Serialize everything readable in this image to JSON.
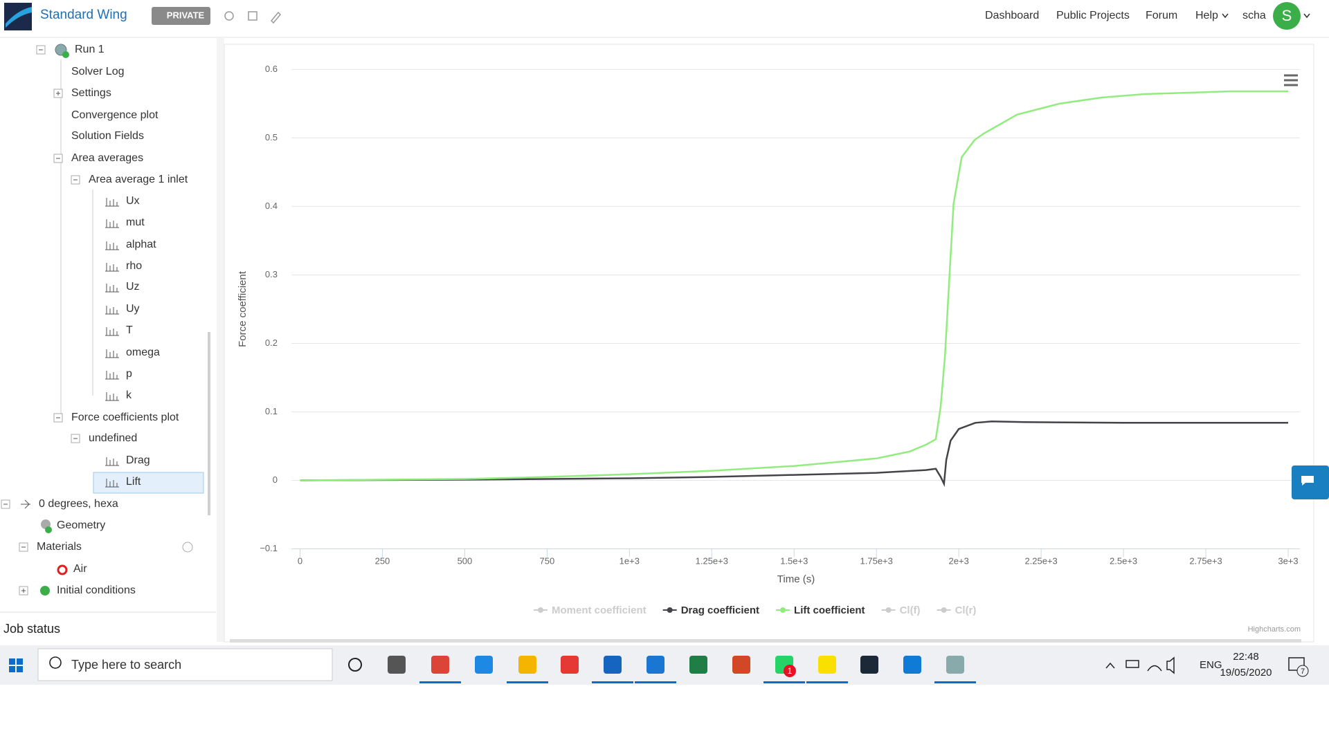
{
  "header": {
    "title": "Standard Wing",
    "badge": "PRIVATE",
    "nav": [
      "Dashboard",
      "Public Projects",
      "Forum",
      "Help"
    ],
    "user": "scha",
    "avatar": "S"
  },
  "sidebar": {
    "tree": [
      "Run 1",
      "Solver Log",
      "Settings",
      "Convergence plot",
      "Solution Fields",
      "Area averages",
      "Area average 1 inlet",
      "Ux",
      "mut",
      "alphat",
      "rho",
      "Uz",
      "Uy",
      "T",
      "omega",
      "p",
      "k",
      "Force coefficients plot",
      "undefined",
      "Drag",
      "Lift",
      "0 degrees, hexa",
      "Geometry",
      "Materials",
      "Air",
      "Initial conditions"
    ],
    "job_status": "Job status"
  },
  "chart_data": {
    "type": "line",
    "xlabel": "Time (s)",
    "ylabel": "Force coefficient",
    "credit": "Highcharts.com",
    "xlim": [
      0,
      3000
    ],
    "ylim": [
      -0.1,
      0.6
    ],
    "grid": true,
    "xticks": [
      0,
      250,
      500,
      750,
      {
        "value": 1000,
        "label": "1e+3"
      },
      {
        "value": 1250,
        "label": "1.25e+3"
      },
      {
        "value": 1500,
        "label": "1.5e+3"
      },
      {
        "value": 1750,
        "label": "1.75e+3"
      },
      {
        "value": 2000,
        "label": "2e+3"
      },
      {
        "value": 2250,
        "label": "2.25e+3"
      },
      {
        "value": 2500,
        "label": "2.5e+3"
      },
      {
        "value": 2750,
        "label": "2.75e+3"
      },
      {
        "value": 3000,
        "label": "3e+3"
      }
    ],
    "yticks": [
      {
        "value": -0.1,
        "label": "−0.1"
      },
      0,
      0.1,
      0.2,
      0.3,
      0.4,
      0.5,
      0.6
    ],
    "series": [
      {
        "name": "Moment coefficient",
        "color": "#cccccc",
        "visible": false
      },
      {
        "name": "Drag coefficient",
        "color": "#434348",
        "visible": true,
        "x": [
          0,
          500,
          1000,
          1250,
          1500,
          1750,
          1900,
          1930,
          1945,
          1955,
          1962,
          1975,
          2000,
          2050,
          2100,
          2200,
          2500,
          2750,
          3000
        ],
        "values": [
          0,
          0.001,
          0.003,
          0.005,
          0.008,
          0.011,
          0.015,
          0.017,
          0.005,
          -0.005,
          0.03,
          0.058,
          0.075,
          0.084,
          0.086,
          0.085,
          0.084,
          0.084,
          0.084
        ]
      },
      {
        "name": "Lift coefficient",
        "color": "#90ed7d",
        "visible": true,
        "x": [
          0,
          250,
          500,
          750,
          1000,
          1250,
          1500,
          1750,
          1850,
          1900,
          1930,
          1945,
          1958,
          1971,
          1984,
          2009,
          2048,
          2074,
          2177,
          2305,
          2434,
          2563,
          2691,
          2820,
          3000
        ],
        "values": [
          0,
          0.001,
          0.002,
          0.005,
          0.009,
          0.014,
          0.021,
          0.032,
          0.042,
          0.052,
          0.06,
          0.108,
          0.182,
          0.293,
          0.404,
          0.472,
          0.497,
          0.506,
          0.534,
          0.55,
          0.559,
          0.564,
          0.566,
          0.568,
          0.568
        ]
      },
      {
        "name": "Cl(f)",
        "color": "#cccccc",
        "visible": false
      },
      {
        "name": "Cl(r)",
        "color": "#cccccc",
        "visible": false
      }
    ]
  },
  "taskbar": {
    "search": "Type here to search",
    "whatsapp_badge": "1",
    "language": "ENG",
    "time": "22:48",
    "date": "19/05/2020",
    "notifications": "7"
  }
}
